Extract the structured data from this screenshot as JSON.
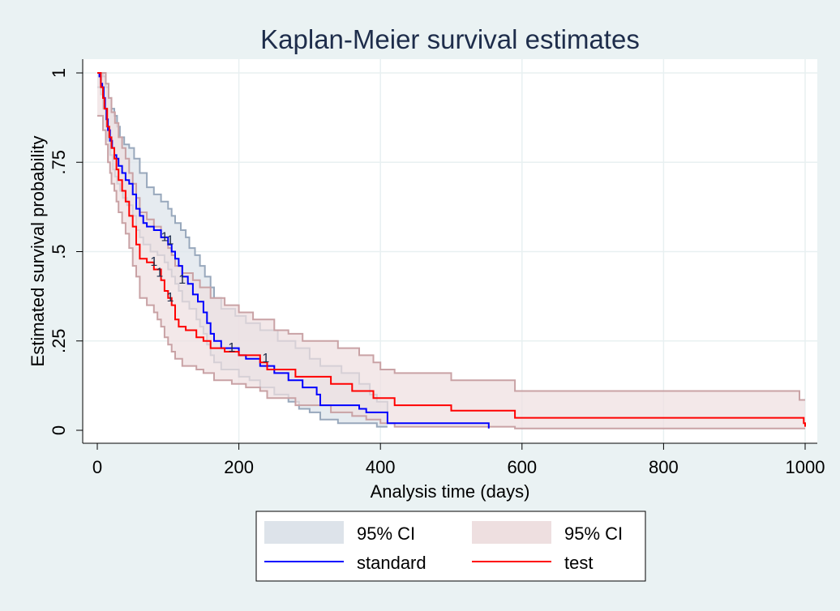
{
  "chart_data": {
    "type": "line",
    "step": true,
    "title": "Kaplan-Meier survival estimates",
    "xlabel": "Analysis time (days)",
    "ylabel": "Estimated survival probability",
    "xlim": [
      0,
      1000
    ],
    "ylim": [
      0,
      1
    ],
    "xticks": [
      0,
      200,
      400,
      600,
      800,
      1000
    ],
    "xtick_labels": [
      "0",
      "200",
      "400",
      "600",
      "800",
      "1000"
    ],
    "yticks": [
      0,
      0.25,
      0.5,
      0.75,
      1
    ],
    "ytick_labels": [
      "0",
      ".25",
      ".5",
      ".75",
      "1"
    ],
    "grid": true,
    "legend": {
      "position": "bottom",
      "entries": [
        {
          "label": "95% CI",
          "kind": "band",
          "color": "#dde3ea"
        },
        {
          "label": "95% CI",
          "kind": "band",
          "color": "#eedfe0"
        },
        {
          "label": "standard",
          "kind": "line",
          "color": "#0000ff"
        },
        {
          "label": "test",
          "kind": "line",
          "color": "#ff0000"
        }
      ]
    },
    "series": [
      {
        "name": "standard",
        "color": "#0000ff",
        "band_fill": "#dde3ea",
        "band_stroke": "#98a8bc",
        "points": [
          [
            0,
            1
          ],
          [
            3,
            0.99
          ],
          [
            5,
            0.97
          ],
          [
            7,
            0.96
          ],
          [
            9,
            0.93
          ],
          [
            11,
            0.9
          ],
          [
            13,
            0.87
          ],
          [
            15,
            0.84
          ],
          [
            18,
            0.81
          ],
          [
            21,
            0.79
          ],
          [
            24,
            0.77
          ],
          [
            27,
            0.76
          ],
          [
            30,
            0.74
          ],
          [
            35,
            0.72
          ],
          [
            40,
            0.7
          ],
          [
            45,
            0.69
          ],
          [
            50,
            0.66
          ],
          [
            55,
            0.62
          ],
          [
            60,
            0.6
          ],
          [
            65,
            0.58
          ],
          [
            70,
            0.57
          ],
          [
            80,
            0.56
          ],
          [
            90,
            0.54
          ],
          [
            100,
            0.52
          ],
          [
            105,
            0.5
          ],
          [
            110,
            0.48
          ],
          [
            115,
            0.46
          ],
          [
            120,
            0.43
          ],
          [
            128,
            0.41
          ],
          [
            135,
            0.38
          ],
          [
            142,
            0.36
          ],
          [
            150,
            0.33
          ],
          [
            155,
            0.3
          ],
          [
            160,
            0.27
          ],
          [
            165,
            0.25
          ],
          [
            175,
            0.23
          ],
          [
            200,
            0.21
          ],
          [
            210,
            0.2
          ],
          [
            230,
            0.18
          ],
          [
            250,
            0.16
          ],
          [
            270,
            0.14
          ],
          [
            290,
            0.12
          ],
          [
            310,
            0.1
          ],
          [
            315,
            0.07
          ],
          [
            370,
            0.06
          ],
          [
            380,
            0.05
          ],
          [
            410,
            0.02
          ],
          [
            553,
            0.02
          ],
          [
            553,
            0.005
          ]
        ],
        "lower": [
          [
            0,
            0.96
          ],
          [
            5,
            0.94
          ],
          [
            8,
            0.9
          ],
          [
            12,
            0.85
          ],
          [
            15,
            0.81
          ],
          [
            18,
            0.77
          ],
          [
            22,
            0.73
          ],
          [
            25,
            0.71
          ],
          [
            28,
            0.69
          ],
          [
            32,
            0.67
          ],
          [
            36,
            0.65
          ],
          [
            42,
            0.63
          ],
          [
            50,
            0.6
          ],
          [
            55,
            0.56
          ],
          [
            60,
            0.54
          ],
          [
            65,
            0.52
          ],
          [
            75,
            0.5
          ],
          [
            85,
            0.49
          ],
          [
            95,
            0.47
          ],
          [
            100,
            0.45
          ],
          [
            105,
            0.43
          ],
          [
            110,
            0.41
          ],
          [
            115,
            0.39
          ],
          [
            120,
            0.36
          ],
          [
            130,
            0.34
          ],
          [
            140,
            0.31
          ],
          [
            145,
            0.29
          ],
          [
            150,
            0.27
          ],
          [
            155,
            0.24
          ],
          [
            160,
            0.21
          ],
          [
            165,
            0.19
          ],
          [
            175,
            0.17
          ],
          [
            200,
            0.15
          ],
          [
            215,
            0.14
          ],
          [
            230,
            0.12
          ],
          [
            250,
            0.1
          ],
          [
            270,
            0.08
          ],
          [
            285,
            0.06
          ],
          [
            300,
            0.05
          ],
          [
            315,
            0.03
          ],
          [
            340,
            0.02
          ],
          [
            380,
            0.02
          ],
          [
            395,
            0.01
          ],
          [
            410,
            0.01
          ]
        ],
        "upper": [
          [
            0,
            1
          ],
          [
            5,
            1
          ],
          [
            8,
            0.99
          ],
          [
            12,
            0.96
          ],
          [
            16,
            0.93
          ],
          [
            20,
            0.9
          ],
          [
            24,
            0.88
          ],
          [
            28,
            0.85
          ],
          [
            32,
            0.82
          ],
          [
            38,
            0.8
          ],
          [
            45,
            0.79
          ],
          [
            52,
            0.76
          ],
          [
            60,
            0.72
          ],
          [
            70,
            0.68
          ],
          [
            80,
            0.66
          ],
          [
            90,
            0.64
          ],
          [
            100,
            0.62
          ],
          [
            105,
            0.6
          ],
          [
            110,
            0.58
          ],
          [
            118,
            0.56
          ],
          [
            125,
            0.54
          ],
          [
            130,
            0.51
          ],
          [
            138,
            0.49
          ],
          [
            145,
            0.46
          ],
          [
            152,
            0.43
          ],
          [
            160,
            0.4
          ],
          [
            165,
            0.37
          ],
          [
            175,
            0.34
          ],
          [
            195,
            0.32
          ],
          [
            210,
            0.3
          ],
          [
            230,
            0.28
          ],
          [
            255,
            0.25
          ],
          [
            280,
            0.23
          ],
          [
            300,
            0.2
          ],
          [
            315,
            0.18
          ],
          [
            345,
            0.16
          ],
          [
            370,
            0.13
          ],
          [
            385,
            0.1
          ],
          [
            395,
            0.08
          ],
          [
            410,
            0.06
          ],
          [
            410,
            0.02
          ]
        ],
        "censor_marks": [
          {
            "x": 95,
            "y": 0.53,
            "label": "1"
          },
          {
            "x": 103,
            "y": 0.52,
            "label": "1"
          },
          {
            "x": 120,
            "y": 0.41,
            "label": "1"
          },
          {
            "x": 190,
            "y": 0.22,
            "label": "1"
          },
          {
            "x": 238,
            "y": 0.19,
            "label": "1"
          }
        ]
      },
      {
        "name": "test",
        "color": "#ff0000",
        "band_fill": "#eedfe0",
        "band_stroke": "#c9a2a5",
        "points": [
          [
            0,
            1
          ],
          [
            5,
            0.96
          ],
          [
            8,
            0.93
          ],
          [
            10,
            0.9
          ],
          [
            14,
            0.85
          ],
          [
            17,
            0.82
          ],
          [
            20,
            0.79
          ],
          [
            24,
            0.76
          ],
          [
            27,
            0.73
          ],
          [
            30,
            0.7
          ],
          [
            35,
            0.67
          ],
          [
            40,
            0.64
          ],
          [
            45,
            0.6
          ],
          [
            50,
            0.57
          ],
          [
            55,
            0.52
          ],
          [
            60,
            0.48
          ],
          [
            70,
            0.47
          ],
          [
            80,
            0.45
          ],
          [
            90,
            0.42
          ],
          [
            95,
            0.39
          ],
          [
            100,
            0.37
          ],
          [
            105,
            0.35
          ],
          [
            110,
            0.31
          ],
          [
            115,
            0.29
          ],
          [
            125,
            0.28
          ],
          [
            140,
            0.26
          ],
          [
            150,
            0.25
          ],
          [
            160,
            0.23
          ],
          [
            180,
            0.22
          ],
          [
            200,
            0.21
          ],
          [
            230,
            0.19
          ],
          [
            240,
            0.17
          ],
          [
            280,
            0.15
          ],
          [
            330,
            0.13
          ],
          [
            360,
            0.11
          ],
          [
            390,
            0.09
          ],
          [
            420,
            0.07
          ],
          [
            480,
            0.07
          ],
          [
            500,
            0.055
          ],
          [
            585,
            0.055
          ],
          [
            590,
            0.035
          ],
          [
            990,
            0.035
          ],
          [
            998,
            0.02
          ],
          [
            1000,
            0.01
          ]
        ],
        "lower": [
          [
            0,
            0.88
          ],
          [
            8,
            0.84
          ],
          [
            12,
            0.8
          ],
          [
            15,
            0.75
          ],
          [
            18,
            0.72
          ],
          [
            20,
            0.69
          ],
          [
            24,
            0.67
          ],
          [
            27,
            0.64
          ],
          [
            30,
            0.61
          ],
          [
            35,
            0.58
          ],
          [
            40,
            0.55
          ],
          [
            45,
            0.51
          ],
          [
            50,
            0.46
          ],
          [
            55,
            0.43
          ],
          [
            60,
            0.37
          ],
          [
            70,
            0.35
          ],
          [
            80,
            0.33
          ],
          [
            85,
            0.31
          ],
          [
            90,
            0.29
          ],
          [
            95,
            0.26
          ],
          [
            100,
            0.24
          ],
          [
            105,
            0.22
          ],
          [
            110,
            0.2
          ],
          [
            120,
            0.18
          ],
          [
            140,
            0.17
          ],
          [
            150,
            0.16
          ],
          [
            165,
            0.14
          ],
          [
            190,
            0.13
          ],
          [
            210,
            0.12
          ],
          [
            230,
            0.11
          ],
          [
            240,
            0.09
          ],
          [
            280,
            0.07
          ],
          [
            330,
            0.05
          ],
          [
            360,
            0.04
          ],
          [
            380,
            0.03
          ],
          [
            400,
            0.02
          ],
          [
            420,
            0.01
          ],
          [
            480,
            0.01
          ],
          [
            500,
            0.01
          ],
          [
            585,
            0.01
          ],
          [
            590,
            0.005
          ],
          [
            990,
            0.005
          ],
          [
            1000,
            0.005
          ]
        ],
        "upper": [
          [
            0,
            1
          ],
          [
            8,
            1
          ],
          [
            12,
            0.97
          ],
          [
            16,
            0.93
          ],
          [
            20,
            0.89
          ],
          [
            25,
            0.86
          ],
          [
            30,
            0.82
          ],
          [
            35,
            0.79
          ],
          [
            40,
            0.76
          ],
          [
            45,
            0.72
          ],
          [
            50,
            0.69
          ],
          [
            55,
            0.65
          ],
          [
            60,
            0.61
          ],
          [
            70,
            0.59
          ],
          [
            80,
            0.57
          ],
          [
            90,
            0.54
          ],
          [
            100,
            0.51
          ],
          [
            105,
            0.49
          ],
          [
            110,
            0.46
          ],
          [
            120,
            0.44
          ],
          [
            135,
            0.42
          ],
          [
            145,
            0.4
          ],
          [
            160,
            0.37
          ],
          [
            180,
            0.35
          ],
          [
            200,
            0.33
          ],
          [
            220,
            0.31
          ],
          [
            250,
            0.28
          ],
          [
            270,
            0.27
          ],
          [
            290,
            0.25
          ],
          [
            340,
            0.23
          ],
          [
            370,
            0.21
          ],
          [
            390,
            0.19
          ],
          [
            400,
            0.17
          ],
          [
            420,
            0.16
          ],
          [
            480,
            0.16
          ],
          [
            500,
            0.14
          ],
          [
            585,
            0.14
          ],
          [
            590,
            0.11
          ],
          [
            990,
            0.11
          ],
          [
            992,
            0.085
          ],
          [
            1000,
            0.085
          ]
        ],
        "censor_marks": [
          {
            "x": 80,
            "y": 0.46,
            "label": "1"
          },
          {
            "x": 88,
            "y": 0.43,
            "label": "1"
          },
          {
            "x": 103,
            "y": 0.36,
            "label": "1"
          }
        ]
      }
    ]
  }
}
